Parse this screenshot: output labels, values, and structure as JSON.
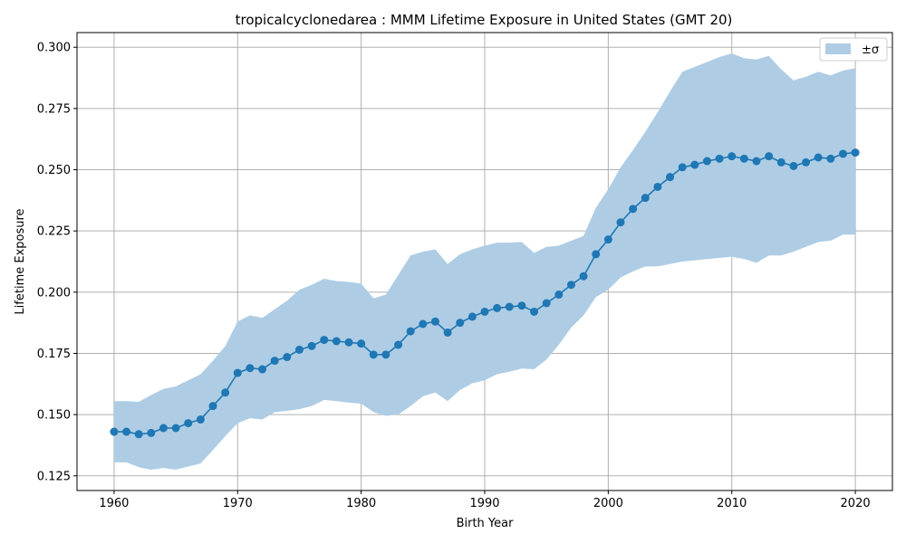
{
  "chart_data": {
    "type": "line",
    "title": "tropicalcyclonedarea : MMM Lifetime Exposure in United States (GMT 20)",
    "xlabel": "Birth Year",
    "ylabel": "Lifetime Exposure",
    "xlim": [
      1957,
      2023
    ],
    "ylim": [
      0.119,
      0.306
    ],
    "xticks": [
      1960,
      1970,
      1980,
      1990,
      2000,
      2010,
      2020
    ],
    "xtick_labels": [
      "1960",
      "1970",
      "1980",
      "1990",
      "2000",
      "2010",
      "2020"
    ],
    "yticks": [
      0.125,
      0.15,
      0.175,
      0.2,
      0.225,
      0.25,
      0.275,
      0.3
    ],
    "ytick_labels": [
      "0.125",
      "0.150",
      "0.175",
      "0.200",
      "0.225",
      "0.250",
      "0.275",
      "0.300"
    ],
    "grid": true,
    "legend_position": "top-right",
    "legend": {
      "band_label": "±σ"
    },
    "colors": {
      "line": "#1f77b4",
      "band": "#aecde5",
      "grid": "#b0b0b0"
    },
    "x": [
      1960,
      1961,
      1962,
      1963,
      1964,
      1965,
      1966,
      1967,
      1968,
      1969,
      1970,
      1971,
      1972,
      1973,
      1974,
      1975,
      1976,
      1977,
      1978,
      1979,
      1980,
      1981,
      1982,
      1983,
      1984,
      1985,
      1986,
      1987,
      1988,
      1989,
      1990,
      1991,
      1992,
      1993,
      1994,
      1995,
      1996,
      1997,
      1998,
      1999,
      2000,
      2001,
      2002,
      2003,
      2004,
      2005,
      2006,
      2007,
      2008,
      2009,
      2010,
      2011,
      2012,
      2013,
      2014,
      2015,
      2016,
      2017,
      2018,
      2019,
      2020
    ],
    "mean": [
      0.143,
      0.143,
      0.142,
      0.1425,
      0.1445,
      0.1445,
      0.1465,
      0.148,
      0.1535,
      0.159,
      0.167,
      0.169,
      0.1685,
      0.172,
      0.1735,
      0.1765,
      0.178,
      0.1805,
      0.18,
      0.1795,
      0.179,
      0.1745,
      0.1745,
      0.1785,
      0.184,
      0.187,
      0.188,
      0.1835,
      0.1875,
      0.19,
      0.192,
      0.1935,
      0.194,
      0.1945,
      0.192,
      0.1955,
      0.199,
      0.203,
      0.2065,
      0.2155,
      0.2215,
      0.2285,
      0.234,
      0.2385,
      0.243,
      0.247,
      0.251,
      0.252,
      0.2535,
      0.2545,
      0.2555,
      0.2545,
      0.2535,
      0.2555,
      0.253,
      0.2515,
      0.253,
      0.255,
      0.2545,
      0.2565,
      0.257
    ],
    "upper": [
      0.1555,
      0.1555,
      0.1552,
      0.158,
      0.1605,
      0.1615,
      0.164,
      0.1665,
      0.172,
      0.178,
      0.188,
      0.1905,
      0.1895,
      0.193,
      0.1965,
      0.201,
      0.203,
      0.2055,
      0.2045,
      0.2042,
      0.2035,
      0.1975,
      0.199,
      0.207,
      0.215,
      0.2165,
      0.2175,
      0.2115,
      0.2155,
      0.2175,
      0.219,
      0.2202,
      0.2202,
      0.2205,
      0.216,
      0.2185,
      0.219,
      0.221,
      0.223,
      0.2345,
      0.242,
      0.251,
      0.258,
      0.2655,
      0.2735,
      0.282,
      0.29,
      0.292,
      0.294,
      0.296,
      0.2975,
      0.2955,
      0.295,
      0.2965,
      0.291,
      0.2865,
      0.288,
      0.29,
      0.2885,
      0.2905,
      0.2915
    ],
    "lower": [
      0.1305,
      0.1305,
      0.1285,
      0.1275,
      0.1282,
      0.1275,
      0.1288,
      0.13,
      0.1355,
      0.1412,
      0.1465,
      0.1485,
      0.148,
      0.151,
      0.1515,
      0.1522,
      0.1535,
      0.156,
      0.1555,
      0.1549,
      0.1545,
      0.151,
      0.1495,
      0.15,
      0.1535,
      0.1575,
      0.159,
      0.1555,
      0.16,
      0.1628,
      0.164,
      0.1665,
      0.1675,
      0.1688,
      0.1685,
      0.1725,
      0.1785,
      0.1855,
      0.1905,
      0.198,
      0.201,
      0.206,
      0.2085,
      0.2105,
      0.2105,
      0.2115,
      0.2125,
      0.213,
      0.2135,
      0.214,
      0.2145,
      0.2135,
      0.212,
      0.215,
      0.215,
      0.2165,
      0.2185,
      0.2205,
      0.221,
      0.2235,
      0.2235
    ]
  }
}
